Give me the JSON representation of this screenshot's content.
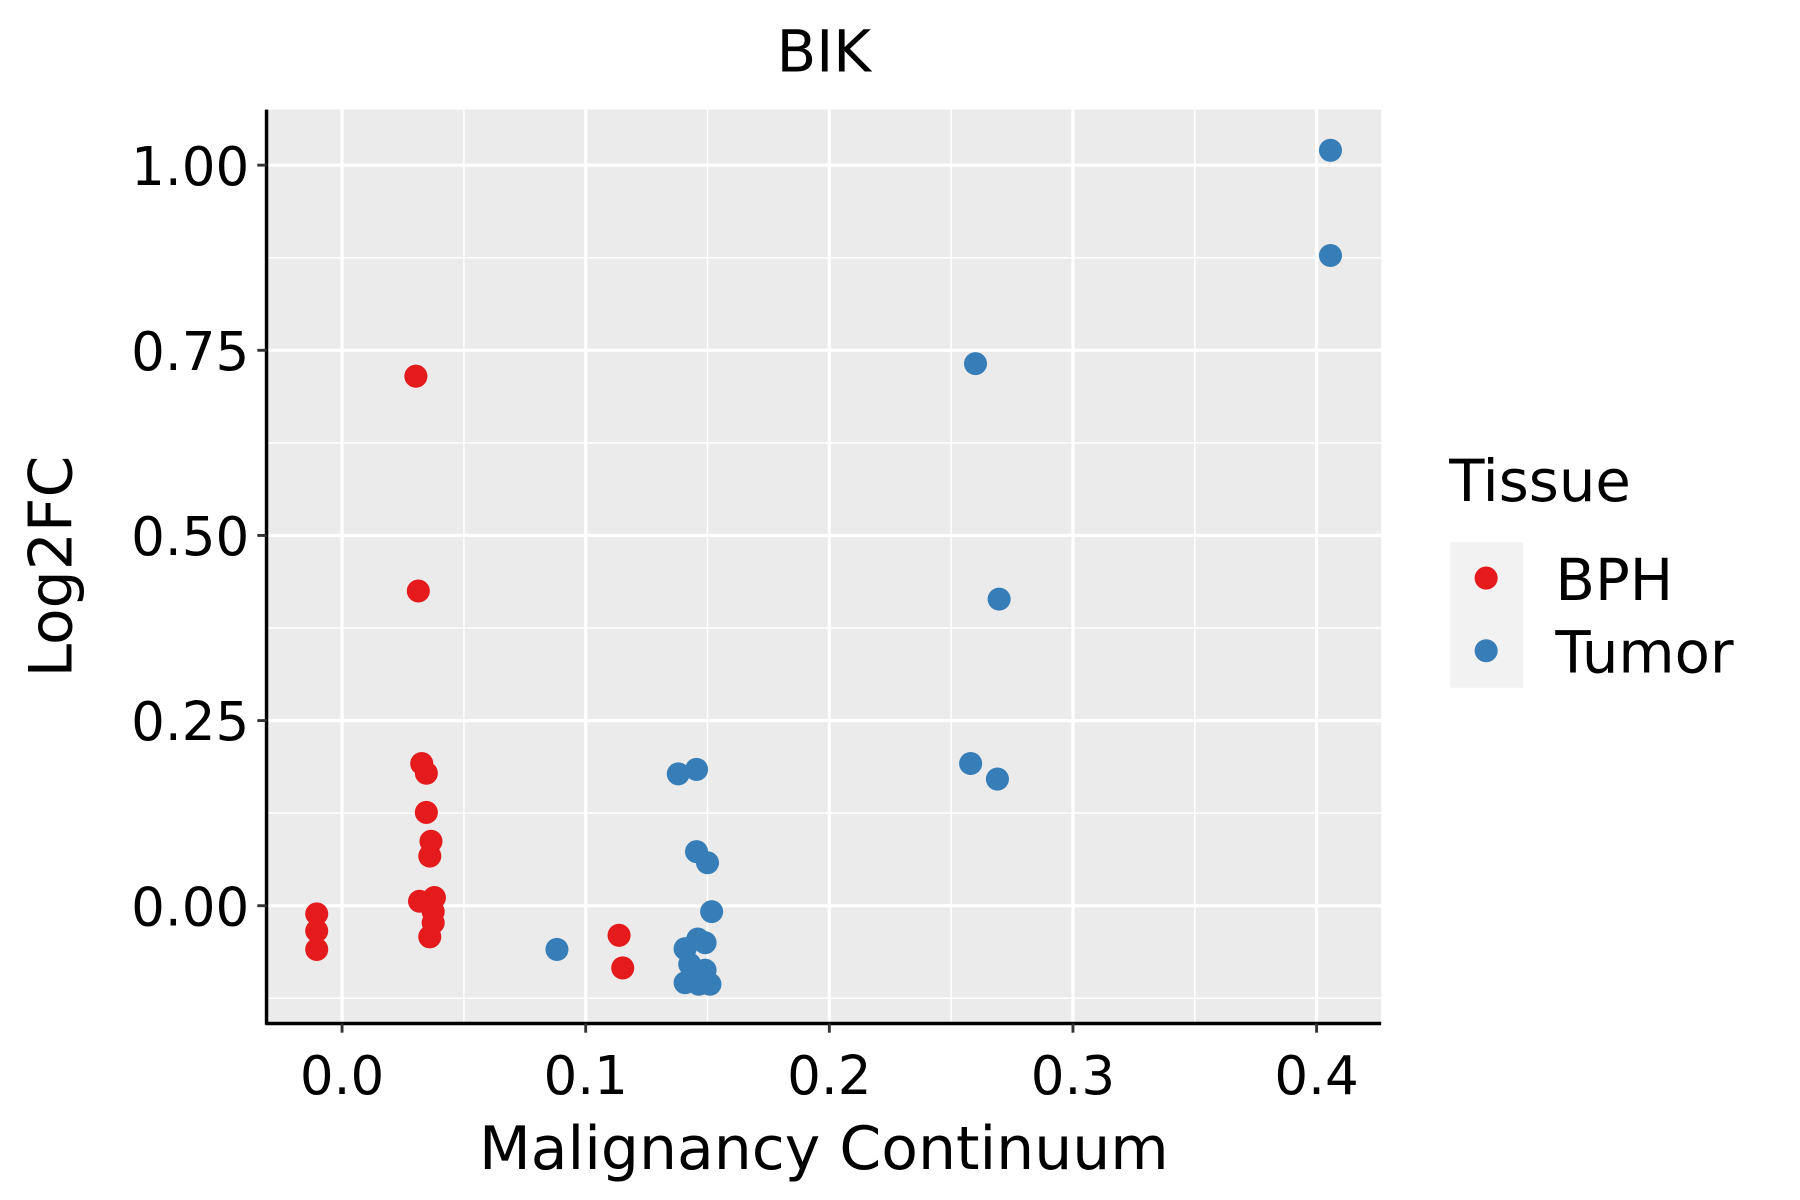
{
  "chart_data": {
    "type": "scatter",
    "title": "BIK",
    "xlabel": "Malignancy Continuum",
    "ylabel": "Log2FC",
    "xlim": [
      -0.031,
      0.4265
    ],
    "ylim": [
      -0.159,
      1.075
    ],
    "xticks": [
      0.0,
      0.1,
      0.2,
      0.3,
      0.4
    ],
    "xtick_labels": [
      "0.0",
      "0.1",
      "0.2",
      "0.3",
      "0.4"
    ],
    "yticks": [
      0.0,
      0.25,
      0.5,
      0.75,
      1.0
    ],
    "ytick_labels": [
      "0.00",
      "0.25",
      "0.50",
      "0.75",
      "1.00"
    ],
    "grid": true,
    "legend": {
      "title": "Tissue",
      "placement": "right",
      "entries": [
        "BPH",
        "Tumor"
      ]
    },
    "series": [
      {
        "name": "BPH",
        "color": "#E41A1C",
        "points": [
          [
            -0.0104,
            -0.011
          ],
          [
            -0.0104,
            -0.034
          ],
          [
            -0.0104,
            -0.059
          ],
          [
            0.0303,
            0.715
          ],
          [
            0.0313,
            0.425
          ],
          [
            0.0327,
            0.192
          ],
          [
            0.0346,
            0.179
          ],
          [
            0.0346,
            0.126
          ],
          [
            0.0365,
            0.087
          ],
          [
            0.036,
            0.067
          ],
          [
            0.0318,
            0.006
          ],
          [
            0.0379,
            0.011
          ],
          [
            0.0374,
            -0.008
          ],
          [
            0.0374,
            -0.023
          ],
          [
            0.036,
            -0.042
          ],
          [
            0.1137,
            -0.04
          ],
          [
            0.1152,
            -0.084
          ]
        ]
      },
      {
        "name": "Tumor",
        "color": "#377EB8",
        "points": [
          [
            0.4057,
            1.02
          ],
          [
            0.4057,
            0.878
          ],
          [
            0.26,
            0.732
          ],
          [
            0.2697,
            0.414
          ],
          [
            0.258,
            0.192
          ],
          [
            0.269,
            0.171
          ],
          [
            0.138,
            0.178
          ],
          [
            0.1455,
            0.184
          ],
          [
            0.1455,
            0.073
          ],
          [
            0.15,
            0.058
          ],
          [
            0.1517,
            -0.008
          ],
          [
            0.0882,
            -0.059
          ],
          [
            0.1408,
            -0.058
          ],
          [
            0.146,
            -0.045
          ],
          [
            0.149,
            -0.05
          ],
          [
            0.1427,
            -0.079
          ],
          [
            0.149,
            -0.087
          ],
          [
            0.1436,
            -0.097
          ],
          [
            0.1408,
            -0.104
          ],
          [
            0.1464,
            -0.106
          ],
          [
            0.151,
            -0.106
          ]
        ]
      }
    ]
  }
}
